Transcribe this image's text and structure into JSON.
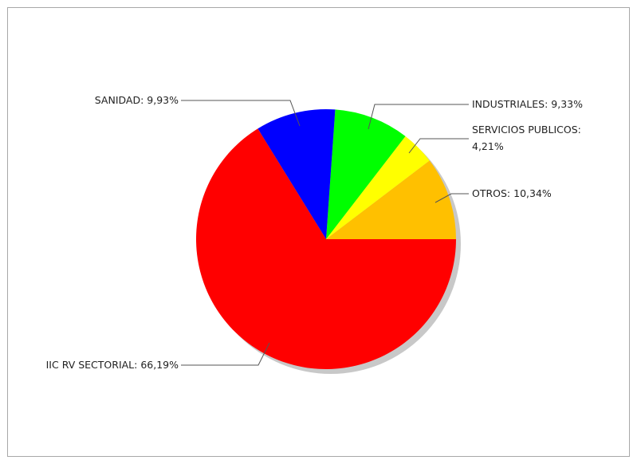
{
  "chart_data": {
    "type": "pie",
    "title": "",
    "slices": [
      {
        "label": "OTROS",
        "value": 10.34,
        "text": "OTROS: 10,34%",
        "color": "#ffc000"
      },
      {
        "label": "SERVICIOS PUBLICOS",
        "value": 4.21,
        "text_lines": [
          "SERVICIOS PUBLICOS:",
          "4,21%"
        ],
        "color": "#ffff00"
      },
      {
        "label": "INDUSTRIALES",
        "value": 9.33,
        "text": "INDUSTRIALES: 9,33%",
        "color": "#00ff00"
      },
      {
        "label": "SANIDAD",
        "value": 9.93,
        "text": "SANIDAD: 9,93%",
        "color": "#0000ff"
      },
      {
        "label": "IIC RV SECTORIAL",
        "value": 66.19,
        "text": "IIC RV SECTORIAL: 66,19%",
        "color": "#ff0000"
      }
    ],
    "unit": "%",
    "start_angle": "3 o'clock",
    "direction": "counter-clockwise",
    "legend": "none",
    "labels": "outside with leader lines"
  }
}
